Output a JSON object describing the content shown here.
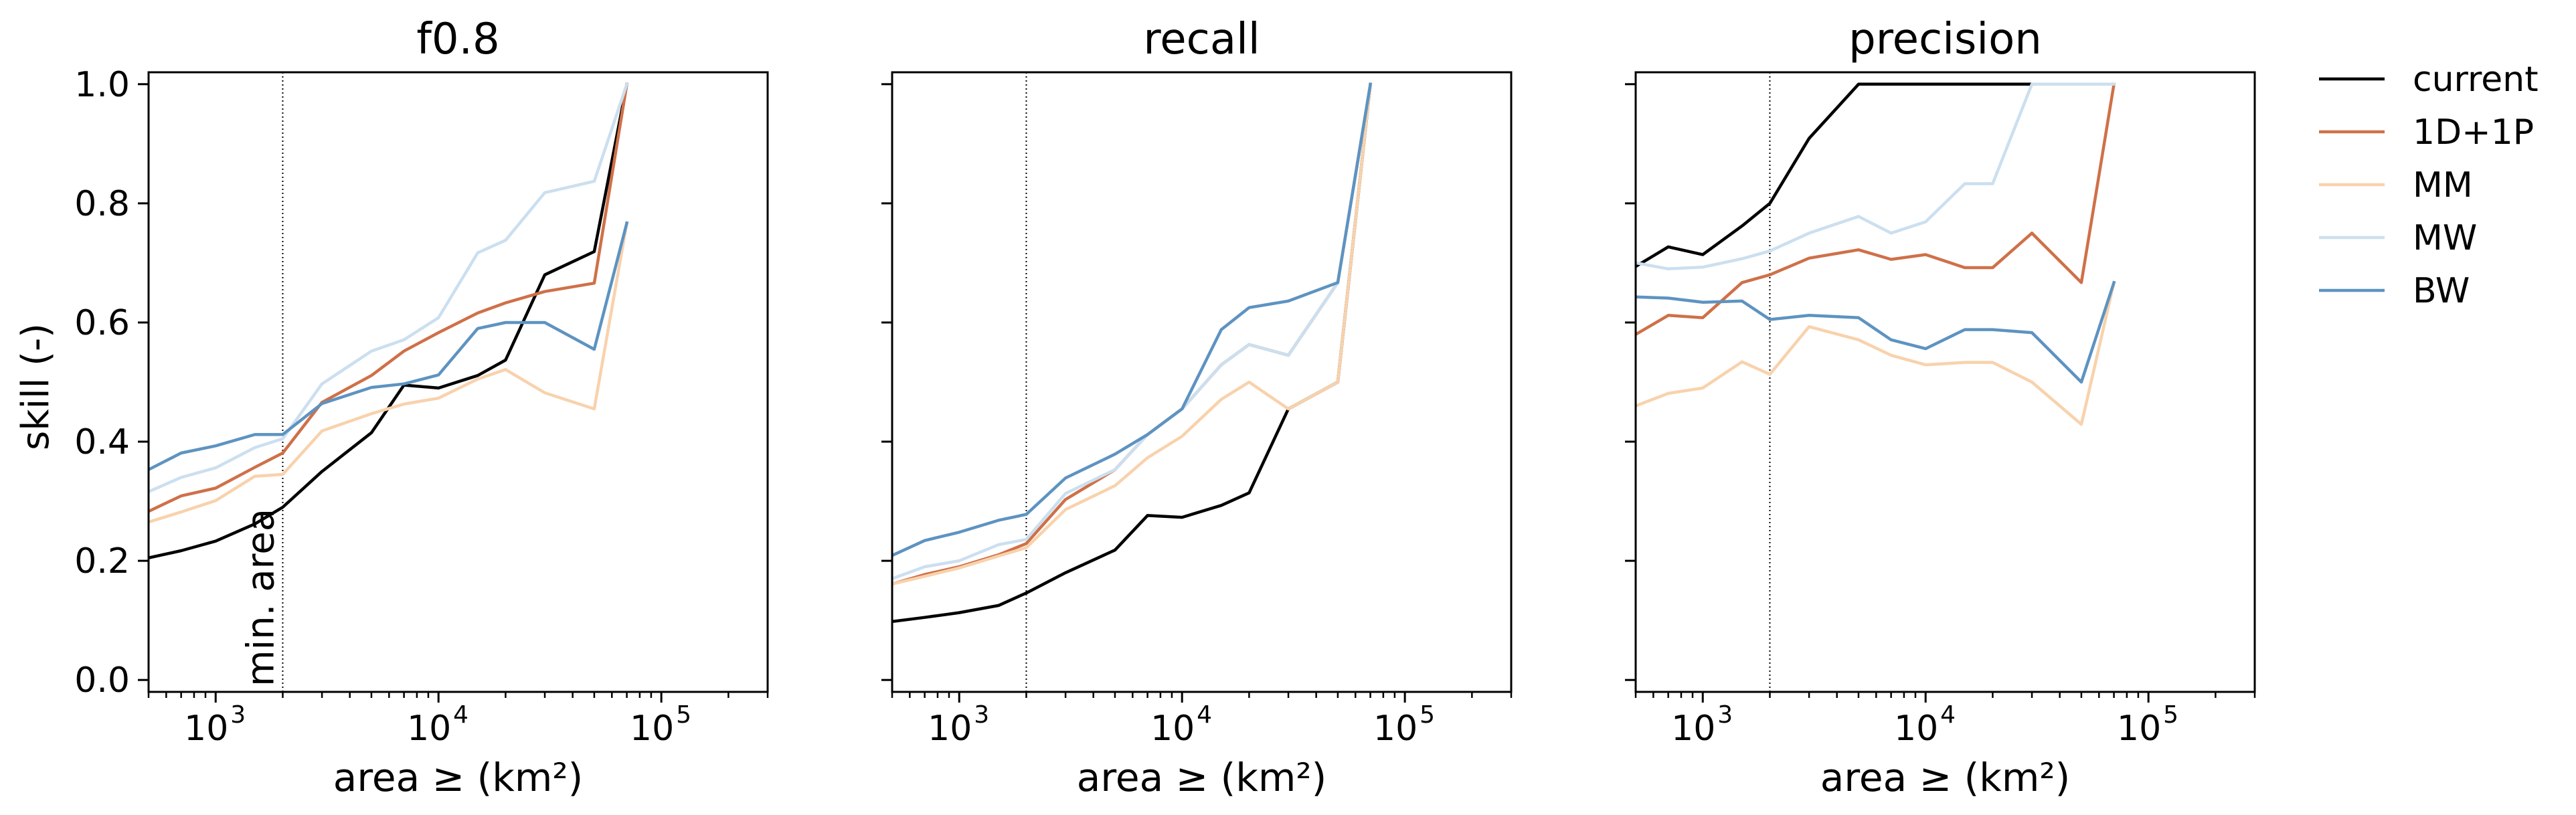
{
  "figure": {
    "ylabel": "skill (-)",
    "xlabel": "area ≥ (km²)",
    "vline_label": "min. area"
  },
  "chart_data": [
    {
      "type": "line",
      "title": "f0.8",
      "xlabel": "area ≥ (km²)",
      "ylabel": "skill (-)",
      "xscale": "log",
      "xlim": [
        500,
        300000
      ],
      "ylim": [
        -0.02,
        1.02
      ],
      "yticks": [
        0.0,
        0.2,
        0.4,
        0.6,
        0.8,
        1.0
      ],
      "ytick_labels": [
        "0.0",
        "0.2",
        "0.4",
        "0.6",
        "0.8",
        "1.0"
      ],
      "xticks": [
        1000,
        10000,
        100000
      ],
      "xtick_labels": [
        "10^3",
        "10^4",
        "10^5"
      ],
      "vline_x": 2000,
      "vline_label": "min. area",
      "grid": false,
      "x": [
        500,
        700,
        1000,
        1500,
        2000,
        3000,
        5000,
        7000,
        10000,
        15000,
        20000,
        30000,
        50000,
        70000
      ],
      "series": [
        {
          "name": "current",
          "color": "#000000",
          "values": [
            0.205,
            0.217,
            0.233,
            0.262,
            0.29,
            0.35,
            0.415,
            0.495,
            0.49,
            0.511,
            0.537,
            0.68,
            0.719,
            1.0
          ]
        },
        {
          "name": "1D+1P",
          "color": "#cf7048",
          "values": [
            0.283,
            0.309,
            0.322,
            0.357,
            0.381,
            0.466,
            0.511,
            0.552,
            0.583,
            0.616,
            0.633,
            0.652,
            0.666,
            1.0
          ]
        },
        {
          "name": "MM",
          "color": "#f8d2ac",
          "values": [
            0.265,
            0.282,
            0.301,
            0.342,
            0.345,
            0.418,
            0.447,
            0.463,
            0.473,
            0.505,
            0.521,
            0.482,
            0.455,
            0.767
          ]
        },
        {
          "name": "MW",
          "color": "#cbdfef",
          "values": [
            0.316,
            0.34,
            0.356,
            0.39,
            0.405,
            0.497,
            0.552,
            0.571,
            0.608,
            0.717,
            0.738,
            0.818,
            0.837,
            1.0
          ]
        },
        {
          "name": "BW",
          "color": "#5d93c1",
          "values": [
            0.353,
            0.381,
            0.393,
            0.412,
            0.412,
            0.464,
            0.491,
            0.497,
            0.512,
            0.59,
            0.6,
            0.6,
            0.555,
            0.767
          ]
        }
      ]
    },
    {
      "type": "line",
      "title": "recall",
      "xlabel": "area ≥ (km²)",
      "xscale": "log",
      "xlim": [
        500,
        300000
      ],
      "ylim": [
        -0.02,
        1.02
      ],
      "yticks": [
        0.0,
        0.2,
        0.4,
        0.6,
        0.8,
        1.0
      ],
      "xticks": [
        1000,
        10000,
        100000
      ],
      "xtick_labels": [
        "10^3",
        "10^4",
        "10^5"
      ],
      "vline_x": 2000,
      "grid": false,
      "x": [
        500,
        700,
        1000,
        1500,
        2000,
        3000,
        5000,
        7000,
        10000,
        15000,
        20000,
        30000,
        50000,
        70000
      ],
      "series": [
        {
          "name": "current",
          "color": "#000000",
          "values": [
            0.098,
            0.105,
            0.113,
            0.125,
            0.146,
            0.18,
            0.218,
            0.276,
            0.273,
            0.293,
            0.314,
            0.455,
            0.5,
            1.0
          ]
        },
        {
          "name": "1D+1P",
          "color": "#cf7048",
          "values": [
            0.161,
            0.177,
            0.19,
            0.21,
            0.229,
            0.303,
            0.353,
            0.412,
            0.455,
            0.529,
            0.563,
            0.545,
            0.667,
            1.0
          ]
        },
        {
          "name": "MM",
          "color": "#f8d2ac",
          "values": [
            0.161,
            0.174,
            0.188,
            0.208,
            0.222,
            0.286,
            0.326,
            0.373,
            0.409,
            0.471,
            0.5,
            0.455,
            0.5,
            1.0
          ]
        },
        {
          "name": "MW",
          "color": "#cbdfef",
          "values": [
            0.17,
            0.19,
            0.2,
            0.227,
            0.236,
            0.313,
            0.353,
            0.412,
            0.455,
            0.529,
            0.563,
            0.545,
            0.667,
            1.0
          ]
        },
        {
          "name": "BW",
          "color": "#5d93c1",
          "values": [
            0.209,
            0.234,
            0.248,
            0.268,
            0.278,
            0.339,
            0.379,
            0.412,
            0.455,
            0.588,
            0.625,
            0.636,
            0.667,
            1.0
          ]
        }
      ]
    },
    {
      "type": "line",
      "title": "precision",
      "xlabel": "area ≥ (km²)",
      "xscale": "log",
      "xlim": [
        500,
        300000
      ],
      "ylim": [
        -0.02,
        1.02
      ],
      "yticks": [
        0.0,
        0.2,
        0.4,
        0.6,
        0.8,
        1.0
      ],
      "xticks": [
        1000,
        10000,
        100000
      ],
      "xtick_labels": [
        "10^3",
        "10^4",
        "10^5"
      ],
      "vline_x": 2000,
      "grid": false,
      "x": [
        500,
        700,
        1000,
        1500,
        2000,
        3000,
        5000,
        7000,
        10000,
        15000,
        20000,
        30000,
        50000,
        70000
      ],
      "series": [
        {
          "name": "current",
          "color": "#000000",
          "values": [
            0.694,
            0.727,
            0.714,
            0.762,
            0.8,
            0.909,
            1.0,
            1.0,
            1.0,
            1.0,
            1.0,
            1.0,
            1.0,
            1.0
          ]
        },
        {
          "name": "1D+1P",
          "color": "#cf7048",
          "values": [
            0.58,
            0.612,
            0.608,
            0.667,
            0.68,
            0.708,
            0.722,
            0.706,
            0.714,
            0.692,
            0.692,
            0.75,
            0.667,
            1.0
          ]
        },
        {
          "name": "MM",
          "color": "#f8d2ac",
          "values": [
            0.46,
            0.481,
            0.49,
            0.534,
            0.513,
            0.593,
            0.571,
            0.545,
            0.529,
            0.533,
            0.533,
            0.5,
            0.429,
            0.667
          ]
        },
        {
          "name": "MW",
          "color": "#cbdfef",
          "values": [
            0.7,
            0.69,
            0.693,
            0.707,
            0.72,
            0.75,
            0.778,
            0.75,
            0.769,
            0.833,
            0.833,
            1.0,
            1.0,
            1.0
          ]
        },
        {
          "name": "BW",
          "color": "#5d93c1",
          "values": [
            0.643,
            0.641,
            0.634,
            0.636,
            0.605,
            0.612,
            0.608,
            0.571,
            0.556,
            0.588,
            0.588,
            0.583,
            0.5,
            0.667
          ]
        }
      ]
    }
  ],
  "legend": {
    "placement": "right, outside",
    "entries": [
      {
        "label": "current",
        "color": "#000000"
      },
      {
        "label": "1D+1P",
        "color": "#cf7048"
      },
      {
        "label": "MM",
        "color": "#f8d2ac"
      },
      {
        "label": "MW",
        "color": "#cbdfef"
      },
      {
        "label": "BW",
        "color": "#5d93c1"
      }
    ]
  }
}
